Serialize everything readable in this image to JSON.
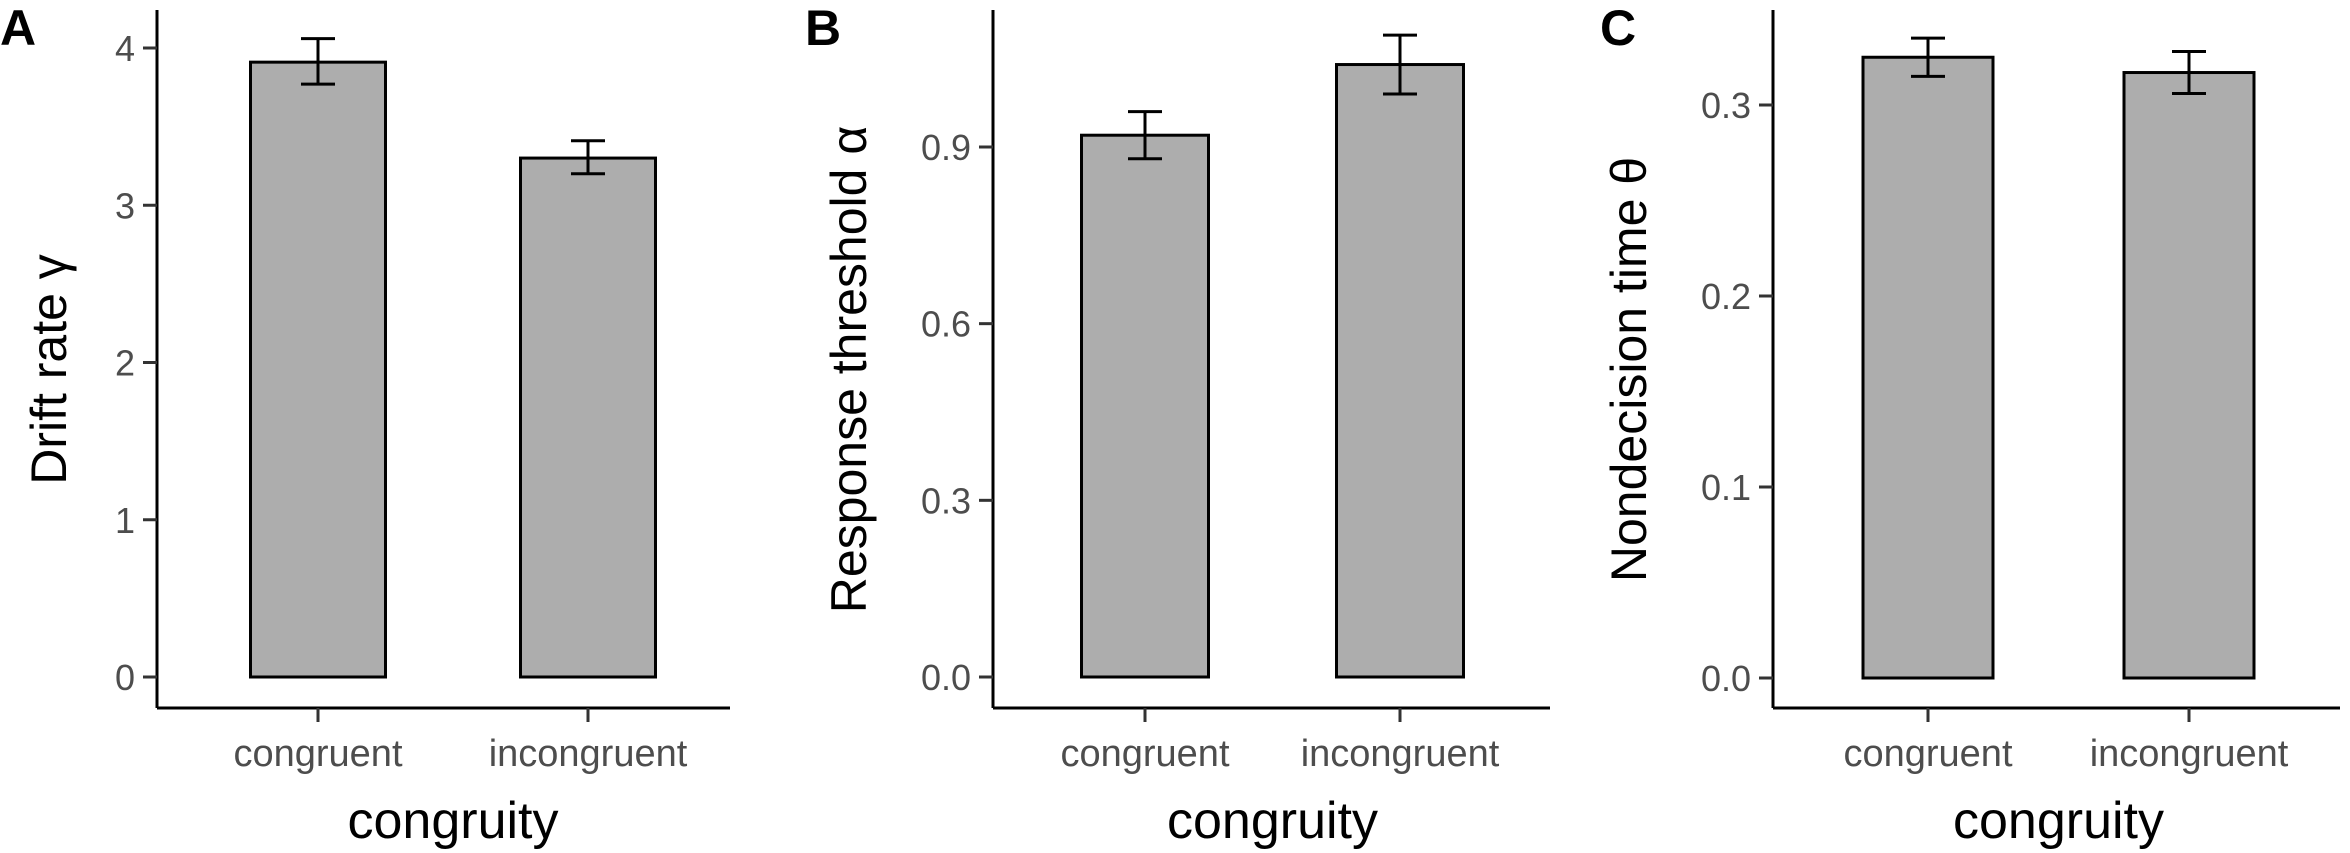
{
  "chart_data": [
    {
      "type": "bar",
      "panel": "A",
      "categories": [
        "congruent",
        "incongruent"
      ],
      "values": [
        3.91,
        3.3
      ],
      "error_low": [
        3.77,
        3.2
      ],
      "error_high": [
        4.06,
        3.41
      ],
      "xlabel": "congruity",
      "ylabel": "Drift rate γ",
      "yticks": [
        0,
        1,
        2,
        3,
        4
      ],
      "ytick_labels": [
        "0",
        "1",
        "2",
        "3",
        "4"
      ],
      "ylim": [
        0,
        4.2
      ],
      "bar_color": "#adadad",
      "grid": false
    },
    {
      "type": "bar",
      "panel": "B",
      "categories": [
        "congruent",
        "incongruent"
      ],
      "values": [
        0.92,
        1.04
      ],
      "error_low": [
        0.88,
        0.99
      ],
      "error_high": [
        0.96,
        1.09
      ],
      "xlabel": "congruity",
      "ylabel": "Response threshold α",
      "yticks": [
        0,
        0.3,
        0.6,
        0.9
      ],
      "ytick_labels": [
        "0.0",
        "0.3",
        "0.6",
        "0.9"
      ],
      "ylim": [
        0,
        1.13
      ],
      "bar_color": "#adadad",
      "grid": false
    },
    {
      "type": "bar",
      "panel": "C",
      "categories": [
        "congruent",
        "incongruent"
      ],
      "values": [
        0.325,
        0.317
      ],
      "error_low": [
        0.315,
        0.306
      ],
      "error_high": [
        0.335,
        0.328
      ],
      "xlabel": "congruity",
      "ylabel": "Nondecision time θ",
      "yticks": [
        0,
        0.1,
        0.2,
        0.3
      ],
      "ytick_labels": [
        "0.0",
        "0.1",
        "0.2",
        "0.3"
      ],
      "ylim": [
        0,
        0.35
      ],
      "bar_color": "#adadad",
      "grid": false
    }
  ]
}
